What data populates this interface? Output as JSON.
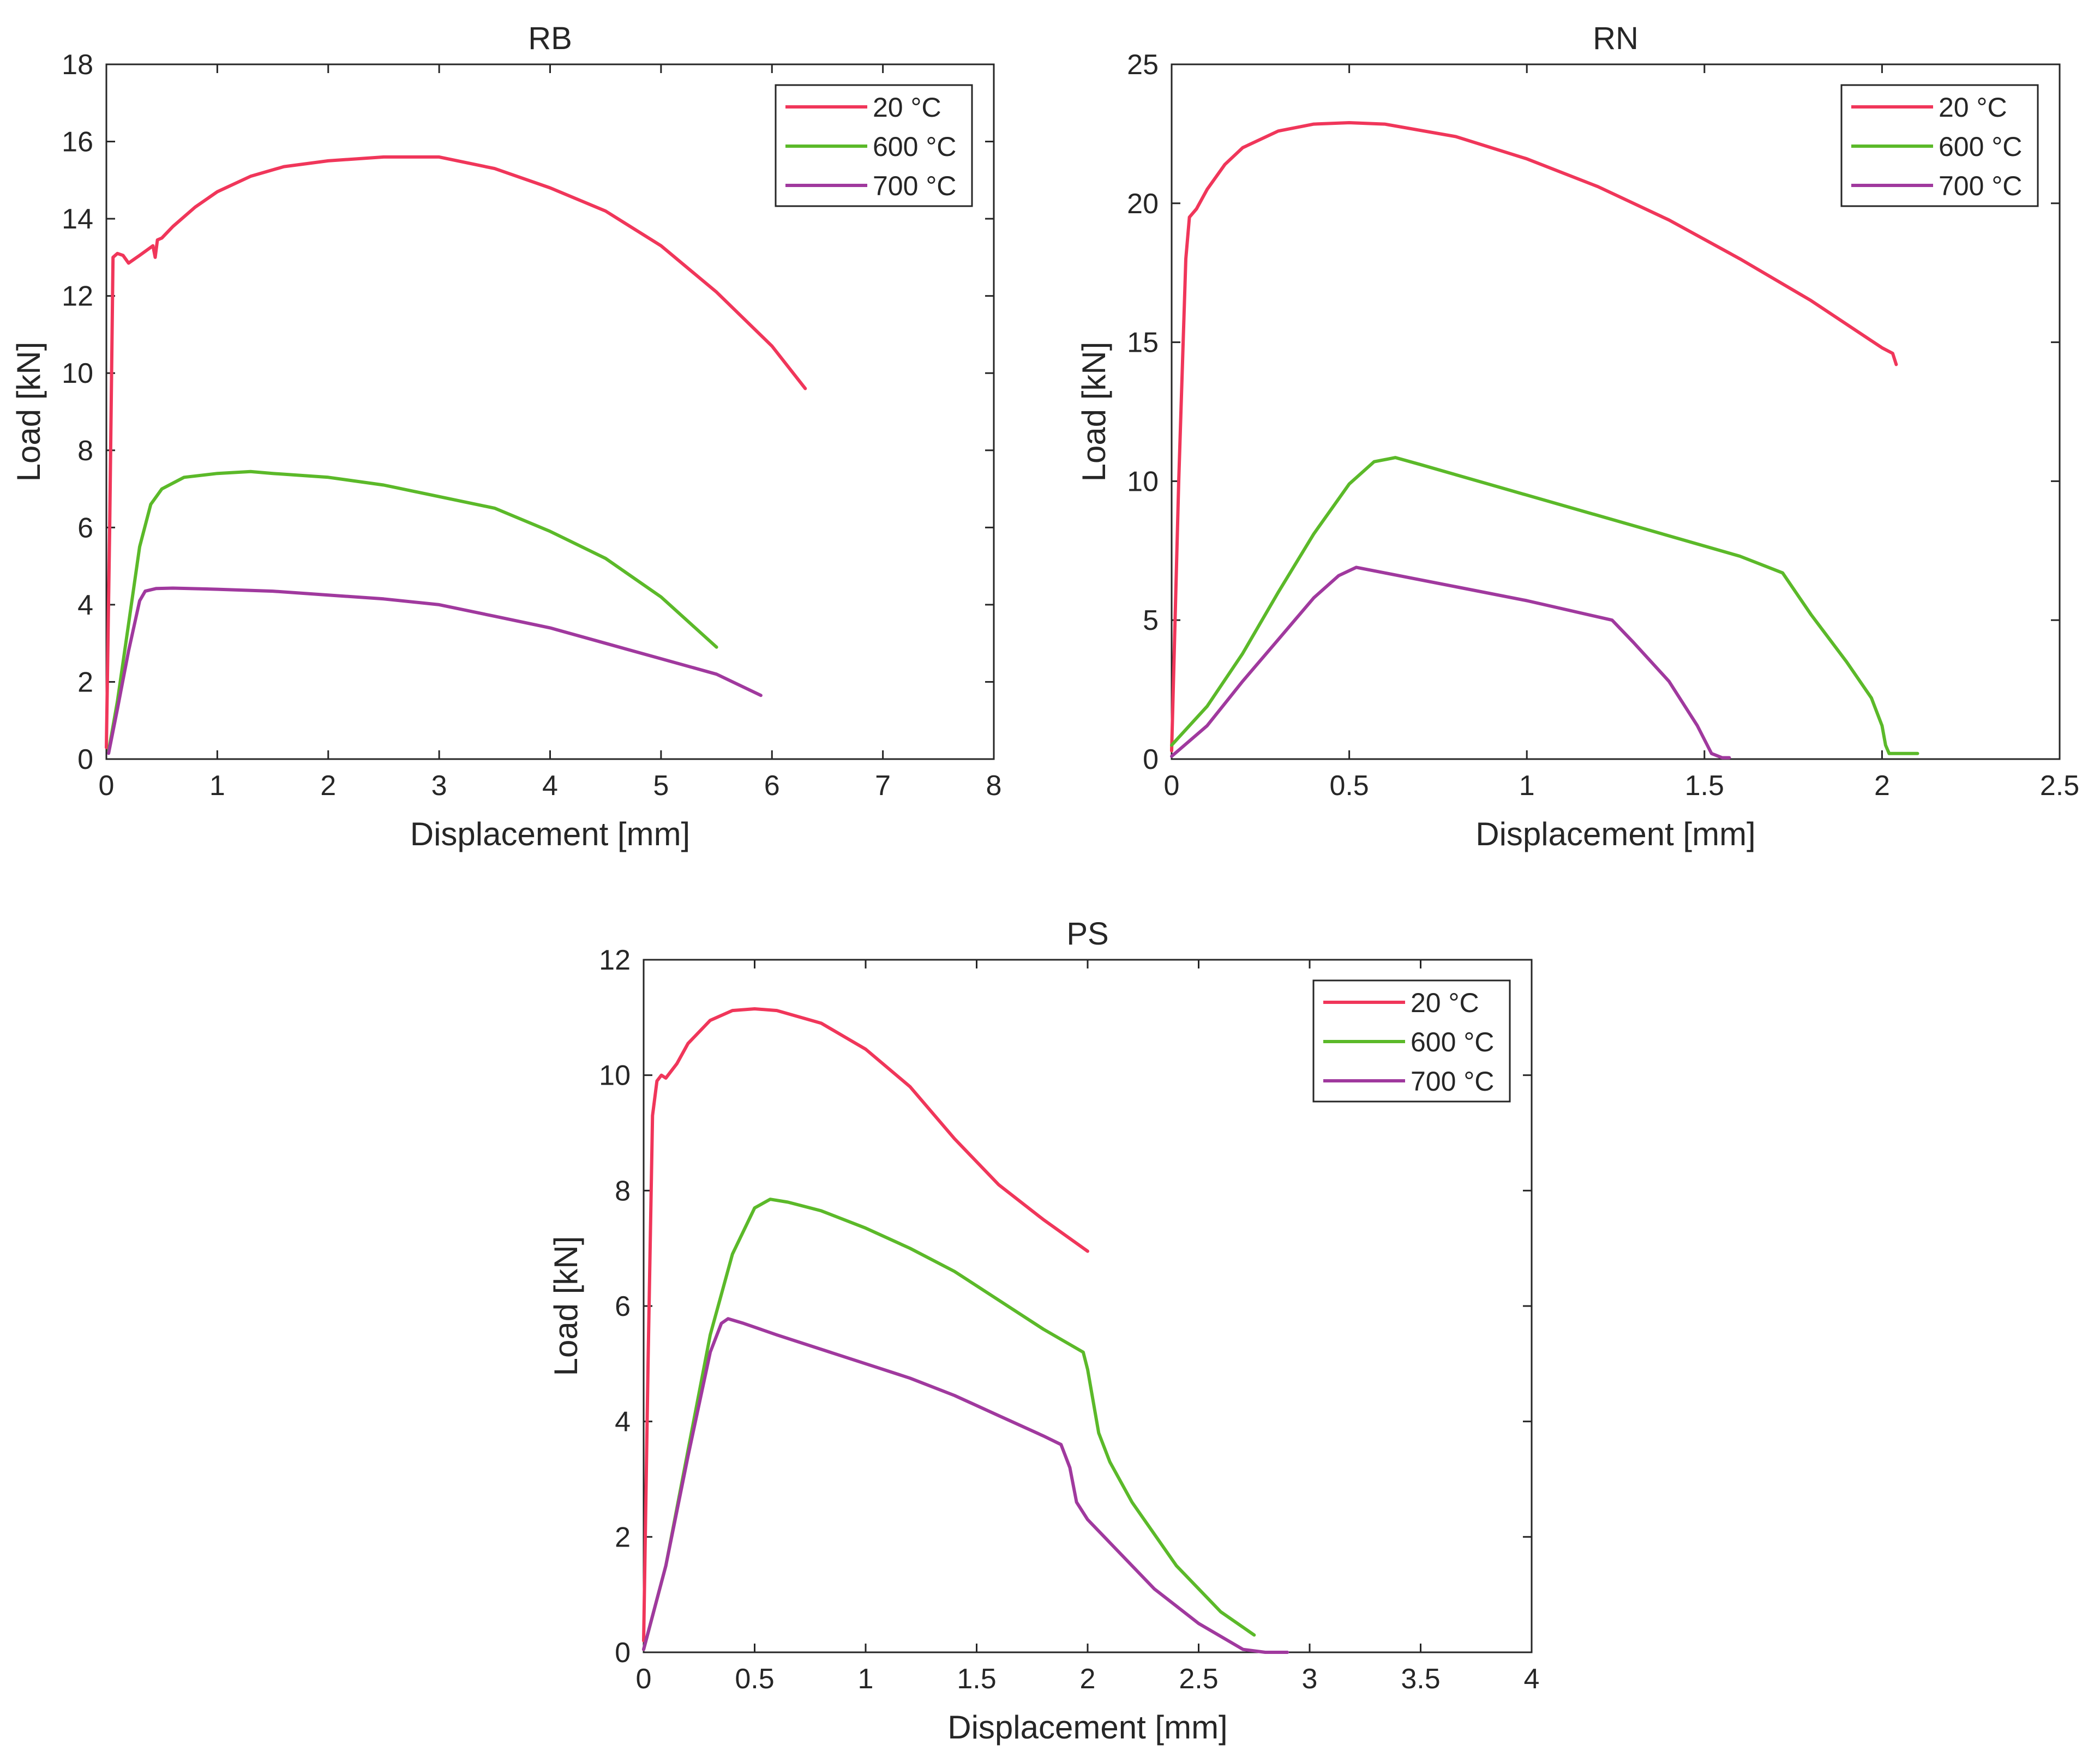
{
  "chart_data": [
    {
      "type": "line",
      "title": "RB",
      "xlabel": "Displacement [mm]",
      "ylabel": "Load [kN]",
      "xlim": [
        0,
        8
      ],
      "ylim": [
        0,
        18
      ],
      "xticks": [
        0,
        1,
        2,
        3,
        4,
        5,
        6,
        7,
        8
      ],
      "yticks": [
        0,
        2,
        4,
        6,
        8,
        10,
        12,
        14,
        16,
        18
      ],
      "xtick_labels": [
        "0",
        "1",
        "2",
        "3",
        "4",
        "5",
        "6",
        "7",
        "8"
      ],
      "ytick_labels": [
        "0",
        "2",
        "4",
        "6",
        "8",
        "10",
        "12",
        "14",
        "16",
        "18"
      ],
      "legend_position": "top-right",
      "series": [
        {
          "name": "20 °C",
          "color": "#f0365a",
          "x": [
            0,
            0.03,
            0.06,
            0.1,
            0.15,
            0.2,
            0.3,
            0.42,
            0.44,
            0.46,
            0.5,
            0.6,
            0.8,
            1.0,
            1.3,
            1.6,
            2.0,
            2.5,
            3.0,
            3.5,
            4.0,
            4.5,
            5.0,
            5.5,
            6.0,
            6.3
          ],
          "y": [
            0.3,
            6,
            13.0,
            13.1,
            13.05,
            12.85,
            13.05,
            13.3,
            13.0,
            13.45,
            13.5,
            13.8,
            14.3,
            14.7,
            15.1,
            15.35,
            15.5,
            15.6,
            15.6,
            15.3,
            14.8,
            14.2,
            13.3,
            12.1,
            10.7,
            9.6
          ]
        },
        {
          "name": "600 °C",
          "color": "#5bb929",
          "x": [
            0.02,
            0.1,
            0.2,
            0.3,
            0.4,
            0.5,
            0.7,
            1.0,
            1.3,
            1.5,
            2.0,
            2.5,
            3.0,
            3.5,
            4.0,
            4.5,
            5.0,
            5.5
          ],
          "y": [
            0.2,
            1.5,
            3.5,
            5.5,
            6.6,
            7.0,
            7.3,
            7.4,
            7.45,
            7.4,
            7.3,
            7.1,
            6.8,
            6.5,
            5.9,
            5.2,
            4.2,
            2.9
          ]
        },
        {
          "name": "700 °C",
          "color": "#a0399e",
          "x": [
            0.02,
            0.1,
            0.2,
            0.3,
            0.35,
            0.45,
            0.6,
            1.0,
            1.5,
            2.0,
            2.5,
            3.0,
            3.5,
            4.0,
            4.5,
            5.0,
            5.5,
            5.9
          ],
          "y": [
            0.15,
            1.3,
            2.8,
            4.1,
            4.35,
            4.42,
            4.43,
            4.4,
            4.35,
            4.25,
            4.15,
            4.0,
            3.7,
            3.4,
            3.0,
            2.6,
            2.2,
            1.65
          ]
        }
      ]
    },
    {
      "type": "line",
      "title": "RN",
      "xlabel": "Displacement [mm]",
      "ylabel": "Load [kN]",
      "xlim": [
        0,
        2.5
      ],
      "ylim": [
        0,
        25
      ],
      "xticks": [
        0,
        0.5,
        1,
        1.5,
        2,
        2.5
      ],
      "yticks": [
        0,
        5,
        10,
        15,
        20,
        25
      ],
      "xtick_labels": [
        "0",
        "0.5",
        "1",
        "1.5",
        "2",
        "2.5"
      ],
      "ytick_labels": [
        "0",
        "5",
        "10",
        "15",
        "20",
        "25"
      ],
      "legend_position": "top-right",
      "series": [
        {
          "name": "20 °C",
          "color": "#f0365a",
          "x": [
            0,
            0.02,
            0.04,
            0.05,
            0.07,
            0.1,
            0.15,
            0.2,
            0.3,
            0.4,
            0.5,
            0.6,
            0.8,
            1.0,
            1.2,
            1.4,
            1.6,
            1.8,
            2.0,
            2.03,
            2.04
          ],
          "y": [
            0.3,
            10,
            18,
            19.5,
            19.8,
            20.5,
            21.4,
            22.0,
            22.6,
            22.85,
            22.9,
            22.85,
            22.4,
            21.6,
            20.6,
            19.4,
            18.0,
            16.5,
            14.8,
            14.6,
            14.2
          ]
        },
        {
          "name": "600 °C",
          "color": "#5bb929",
          "x": [
            0,
            0.1,
            0.2,
            0.3,
            0.4,
            0.5,
            0.57,
            0.63,
            0.7,
            1.0,
            1.3,
            1.6,
            1.72,
            1.8,
            1.9,
            1.97,
            2.0,
            2.01,
            2.02,
            2.05,
            2.1
          ],
          "y": [
            0.5,
            1.9,
            3.8,
            6.0,
            8.1,
            9.9,
            10.7,
            10.85,
            10.6,
            9.5,
            8.4,
            7.3,
            6.7,
            5.2,
            3.5,
            2.2,
            1.2,
            0.5,
            0.2,
            0.2,
            0.2
          ]
        },
        {
          "name": "700 °C",
          "color": "#a0399e",
          "x": [
            0,
            0.1,
            0.2,
            0.3,
            0.4,
            0.47,
            0.52,
            0.6,
            0.8,
            1.0,
            1.24,
            1.3,
            1.4,
            1.48,
            1.52,
            1.55,
            1.57
          ],
          "y": [
            0.1,
            1.2,
            2.8,
            4.3,
            5.8,
            6.6,
            6.9,
            6.7,
            6.2,
            5.7,
            5.0,
            4.2,
            2.8,
            1.2,
            0.2,
            0.05,
            0.05
          ]
        }
      ]
    },
    {
      "type": "line",
      "title": "PS",
      "xlabel": "Displacement [mm]",
      "ylabel": "Load [kN]",
      "xlim": [
        0,
        4
      ],
      "ylim": [
        0,
        12
      ],
      "xticks": [
        0,
        0.5,
        1,
        1.5,
        2,
        2.5,
        3,
        3.5,
        4
      ],
      "yticks": [
        0,
        2,
        4,
        6,
        8,
        10,
        12
      ],
      "xtick_labels": [
        "0",
        "0.5",
        "1",
        "1.5",
        "2",
        "2.5",
        "3",
        "3.5",
        "4"
      ],
      "ytick_labels": [
        "0",
        "2",
        "4",
        "6",
        "8",
        "10",
        "12"
      ],
      "legend_position": "top-right",
      "series": [
        {
          "name": "20 °C",
          "color": "#f0365a",
          "x": [
            0,
            0.02,
            0.04,
            0.06,
            0.08,
            0.1,
            0.15,
            0.2,
            0.3,
            0.4,
            0.5,
            0.6,
            0.8,
            1.0,
            1.2,
            1.4,
            1.6,
            1.8,
            2.0
          ],
          "y": [
            0.2,
            5,
            9.3,
            9.9,
            10.0,
            9.95,
            10.2,
            10.55,
            10.95,
            11.12,
            11.15,
            11.12,
            10.9,
            10.45,
            9.8,
            8.9,
            8.1,
            7.5,
            6.95
          ]
        },
        {
          "name": "600 °C",
          "color": "#5bb929",
          "x": [
            0,
            0.1,
            0.2,
            0.3,
            0.4,
            0.5,
            0.57,
            0.65,
            0.8,
            1.0,
            1.2,
            1.4,
            1.6,
            1.8,
            1.98,
            2.0,
            2.05,
            2.1,
            2.2,
            2.4,
            2.6,
            2.75
          ],
          "y": [
            0.05,
            1.5,
            3.5,
            5.5,
            6.9,
            7.7,
            7.85,
            7.8,
            7.65,
            7.35,
            7.0,
            6.6,
            6.1,
            5.6,
            5.2,
            4.9,
            3.8,
            3.3,
            2.6,
            1.5,
            0.7,
            0.3
          ]
        },
        {
          "name": "700 °C",
          "color": "#a0399e",
          "x": [
            0,
            0.1,
            0.2,
            0.3,
            0.35,
            0.38,
            0.45,
            0.6,
            0.8,
            1.0,
            1.2,
            1.4,
            1.6,
            1.8,
            1.88,
            1.92,
            1.95,
            2.0,
            2.1,
            2.3,
            2.5,
            2.7,
            2.8,
            2.9
          ],
          "y": [
            0.05,
            1.5,
            3.4,
            5.2,
            5.7,
            5.78,
            5.7,
            5.5,
            5.25,
            5.0,
            4.75,
            4.45,
            4.1,
            3.75,
            3.6,
            3.2,
            2.6,
            2.3,
            1.9,
            1.1,
            0.5,
            0.05,
            0.0,
            0.0
          ]
        }
      ]
    }
  ]
}
